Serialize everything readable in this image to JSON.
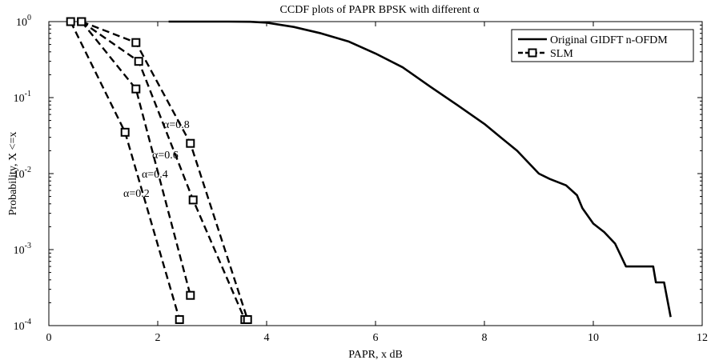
{
  "chart_data": {
    "type": "line",
    "title": "CCDF plots of PAPR BPSK with different α",
    "xlabel": "PAPR, x dB",
    "ylabel": "Probability, X <=x",
    "xlim": [
      0,
      12
    ],
    "ylim": [
      0.0001,
      1
    ],
    "yscale": "log",
    "grid": false,
    "legend_position": "top-right",
    "x_ticks": [
      0,
      2,
      4,
      6,
      8,
      10,
      12
    ],
    "y_ticks": [
      {
        "value": 0.0001,
        "base": "10",
        "exp": "-4"
      },
      {
        "value": 0.001,
        "base": "10",
        "exp": "-3"
      },
      {
        "value": 0.01,
        "base": "10",
        "exp": "-2"
      },
      {
        "value": 0.1,
        "base": "10",
        "exp": "-1"
      },
      {
        "value": 1,
        "base": "10",
        "exp": "0"
      }
    ],
    "series": [
      {
        "name": "Original GIDFT n-OFDM",
        "style": "solid",
        "color": "#000000",
        "x": [
          2.2,
          3.3,
          3.7,
          4.0,
          4.5,
          5.0,
          5.5,
          6.0,
          6.5,
          7.0,
          7.5,
          8.0,
          8.3,
          8.6,
          9.0,
          9.2,
          9.5,
          9.7,
          9.8,
          10.0,
          10.2,
          10.4,
          10.6,
          10.65,
          11.1,
          11.15,
          11.3,
          11.42
        ],
        "y": [
          1.0,
          1.0,
          0.995,
          0.97,
          0.85,
          0.7,
          0.55,
          0.38,
          0.25,
          0.14,
          0.08,
          0.045,
          0.03,
          0.02,
          0.01,
          0.0085,
          0.007,
          0.0052,
          0.0035,
          0.0022,
          0.0017,
          0.0012,
          0.0006,
          0.0006,
          0.0006,
          0.00037,
          0.00037,
          0.00013
        ]
      },
      {
        "name": "SLM",
        "style": "dashed",
        "marker": "square",
        "color": "#000000",
        "annotation": "α=0.2",
        "x": [
          0.4,
          1.4,
          2.4
        ],
        "y": [
          1.0,
          0.035,
          0.00012
        ]
      },
      {
        "style": "dashed",
        "marker": "square",
        "color": "#000000",
        "annotation": "α=0.4",
        "x": [
          0.6,
          1.6,
          2.6
        ],
        "y": [
          1.0,
          0.13,
          0.00025
        ]
      },
      {
        "style": "dashed",
        "marker": "square",
        "color": "#000000",
        "annotation": "α=0.6",
        "x": [
          0.6,
          1.65,
          2.65,
          3.6
        ],
        "y": [
          1.0,
          0.3,
          0.0045,
          0.00012
        ]
      },
      {
        "style": "dashed",
        "marker": "square",
        "color": "#000000",
        "annotation": "α=0.8",
        "x": [
          0.6,
          1.6,
          2.6,
          3.65
        ],
        "y": [
          1.0,
          0.53,
          0.025,
          0.00012
        ]
      }
    ],
    "legend": [
      {
        "label": "Original GIDFT n-OFDM",
        "style": "solid",
        "marker": "none"
      },
      {
        "label": "SLM",
        "style": "dashed",
        "marker": "square"
      }
    ]
  }
}
